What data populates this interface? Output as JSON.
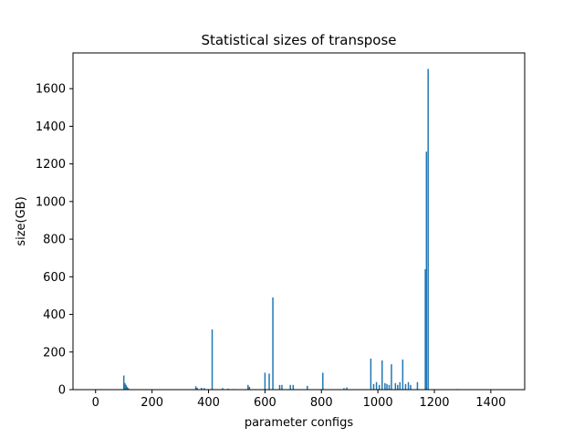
{
  "chart_data": {
    "type": "bar",
    "title": "Statistical sizes  of transpose",
    "xlabel": "parameter configs",
    "ylabel": "size(GB)",
    "xlim": [
      -80,
      1520
    ],
    "ylim": [
      0,
      1790
    ],
    "xticks": [
      0,
      200,
      400,
      600,
      800,
      1000,
      1200,
      1400
    ],
    "yticks": [
      0,
      200,
      400,
      600,
      800,
      1000,
      1200,
      1400,
      1600
    ],
    "grid": false,
    "bar_color": "#1f77b4",
    "bar_width": 3,
    "x": [
      40,
      100,
      104,
      108,
      112,
      116,
      200,
      230,
      300,
      355,
      360,
      375,
      385,
      413,
      450,
      470,
      490,
      540,
      545,
      600,
      615,
      628,
      652,
      660,
      690,
      700,
      750,
      805,
      880,
      890,
      975,
      985,
      995,
      1005,
      1015,
      1025,
      1032,
      1040,
      1048,
      1062,
      1070,
      1078,
      1088,
      1098,
      1108,
      1116,
      1140,
      1168,
      1172,
      1178,
      1280,
      1330
    ],
    "values": [
      2,
      75,
      35,
      25,
      15,
      8,
      2,
      1,
      2,
      18,
      10,
      10,
      8,
      320,
      8,
      5,
      3,
      25,
      15,
      90,
      85,
      490,
      25,
      25,
      25,
      25,
      20,
      90,
      8,
      12,
      165,
      30,
      40,
      25,
      155,
      35,
      30,
      25,
      135,
      35,
      25,
      40,
      160,
      30,
      40,
      25,
      40,
      640,
      1265,
      1705,
      3,
      2
    ]
  }
}
